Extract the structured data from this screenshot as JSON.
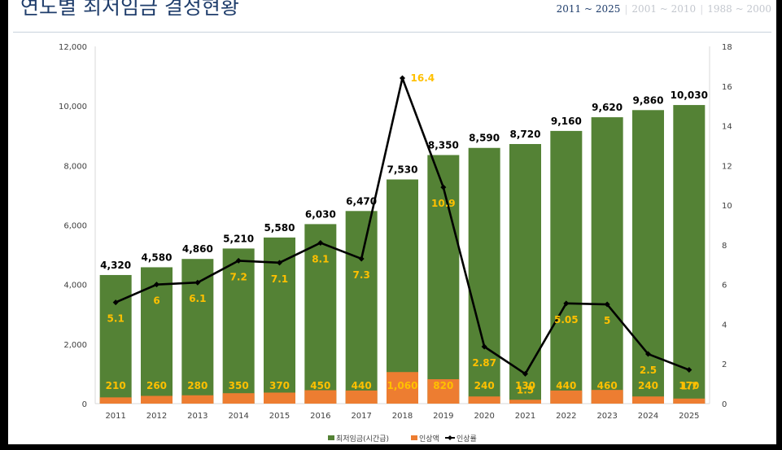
{
  "page": {
    "title": "연도별 최저임금 결정현황"
  },
  "range_tabs": [
    {
      "label": "2011 ~ 2025",
      "active": true
    },
    {
      "label": "2001 ~ 2010",
      "active": false
    },
    {
      "label": "1988 ~ 2000",
      "active": false
    }
  ],
  "colors": {
    "wage": "#548235",
    "increase": "#ed7d31",
    "rate": "#000000",
    "rate_label": "#ffc000",
    "axis": "#d9d9d9"
  },
  "chart_data": {
    "type": "bar",
    "title": "연도별 최저임금 결정현황",
    "categories": [
      "2011",
      "2012",
      "2013",
      "2014",
      "2015",
      "2016",
      "2017",
      "2018",
      "2019",
      "2020",
      "2021",
      "2022",
      "2023",
      "2024",
      "2025"
    ],
    "series": [
      {
        "name": "최저임금(시간급)",
        "type": "bar",
        "axis": "left",
        "values": [
          4320,
          4580,
          4860,
          5210,
          5580,
          6030,
          6470,
          7530,
          8350,
          8590,
          8720,
          9160,
          9620,
          9860,
          10030
        ],
        "labels": [
          "4,320",
          "4,580",
          "4,860",
          "5,210",
          "5,580",
          "6,030",
          "6,470",
          "7,530",
          "8,350",
          "8,590",
          "8,720",
          "9,160",
          "9,620",
          "9,860",
          "10,030"
        ]
      },
      {
        "name": "인상액",
        "type": "bar",
        "axis": "left",
        "values": [
          210,
          260,
          280,
          350,
          370,
          450,
          440,
          1060,
          820,
          240,
          130,
          440,
          460,
          240,
          170
        ],
        "labels": [
          "210",
          "260",
          "280",
          "350",
          "370",
          "450",
          "440",
          "1,060",
          "820",
          "240",
          "130",
          "440",
          "460",
          "240",
          "170"
        ]
      },
      {
        "name": "인상률",
        "type": "line",
        "axis": "right",
        "values": [
          5.1,
          6,
          6.1,
          7.2,
          7.1,
          8.1,
          7.3,
          16.4,
          10.9,
          2.87,
          1.5,
          5.05,
          5,
          2.5,
          1.7
        ],
        "labels": [
          "5.1",
          "6",
          "6.1",
          "7.2",
          "7.1",
          "8.1",
          "7.3",
          "16.4",
          "10.9",
          "2.87",
          "1.5",
          "5.05",
          "5",
          "2.5",
          "1.7"
        ]
      }
    ],
    "y_left": {
      "min": 0,
      "max": 12000,
      "ticks": [
        "0",
        "2,000",
        "4,000",
        "6,000",
        "8,000",
        "10,000",
        "12,000"
      ]
    },
    "y_right": {
      "min": 0,
      "max": 18,
      "ticks": [
        "0",
        "2",
        "4",
        "6",
        "8",
        "10",
        "12",
        "14",
        "16",
        "18"
      ]
    },
    "legend": {
      "position": "bottom",
      "entries": [
        "최저임금(시간급)",
        "인상액",
        "인상률"
      ]
    },
    "grid": false
  }
}
